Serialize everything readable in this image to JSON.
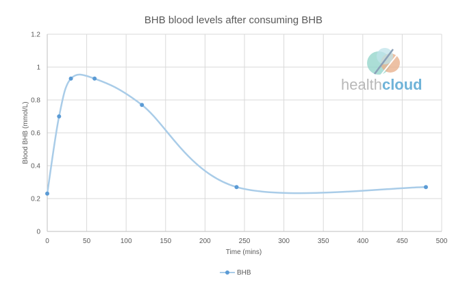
{
  "chart_data": {
    "type": "line",
    "title": "BHB blood levels after consuming BHB",
    "xlabel": "Time (mins)",
    "ylabel": "Blood BHB (mmol/L)",
    "xlim": [
      0,
      500
    ],
    "ylim": [
      0,
      1.2
    ],
    "xticks": [
      0,
      50,
      100,
      150,
      200,
      250,
      300,
      350,
      400,
      450,
      500
    ],
    "yticks": [
      0,
      0.2,
      0.4,
      0.6,
      0.8,
      1,
      1.2
    ],
    "grid": true,
    "smooth": true,
    "legend_position": "bottom",
    "series": [
      {
        "name": "BHB",
        "color": "#5b9bd5",
        "line_color": "#a9cce8",
        "x": [
          0,
          15,
          30,
          60,
          120,
          240,
          480
        ],
        "y": [
          0.23,
          0.7,
          0.93,
          0.93,
          0.77,
          0.27,
          0.27
        ]
      }
    ]
  },
  "watermark": {
    "logo_name": "healthcloud-logo",
    "text_part1": "health",
    "text_part2": "cloud"
  }
}
